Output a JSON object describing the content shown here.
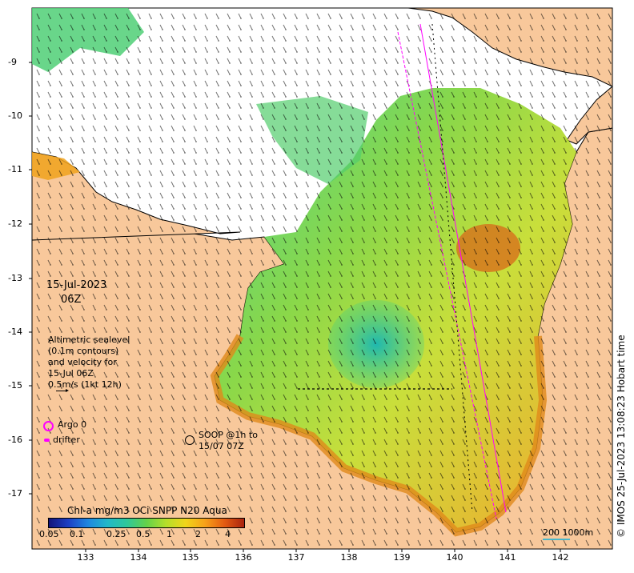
{
  "map": {
    "land_color": "#f8c89b",
    "background_color": "#ffffff",
    "velocity_scale_label": "0.5m/s (1kt 12h)"
  },
  "date": {
    "line1": "15-Jul-2023",
    "line2": "06Z"
  },
  "altimetry": {
    "line1": "Altimetric sealevel",
    "line2": "(0.1m contours)",
    "line3": "and velocity for",
    "line4": "15-Jul 06Z",
    "line5": "0.5m/s (1kt 12h)"
  },
  "legend": {
    "argo": "Argo 0",
    "drifter": "drifter",
    "soop_line1": "SOOP @1h to",
    "soop_line2": "15/07 07Z"
  },
  "colorbar": {
    "title": "Chl-a mg/m3 OCi SNPP N20 Aqua",
    "ticks": [
      "0.05",
      "0.1",
      "0.25",
      "0.5",
      "1",
      "2",
      "4"
    ]
  },
  "axes": {
    "lat_labels": [
      "-9",
      "-10",
      "-11",
      "-12",
      "-13",
      "-14",
      "-15",
      "-16",
      "-17"
    ],
    "lon_labels": [
      "133",
      "134",
      "135",
      "136",
      "137",
      "138",
      "139",
      "140",
      "141",
      "142"
    ]
  },
  "scale_bar": {
    "label": "200  1000m"
  },
  "copyright": "© IMOS 25-Jul-2023 13:08:23 Hobart time"
}
